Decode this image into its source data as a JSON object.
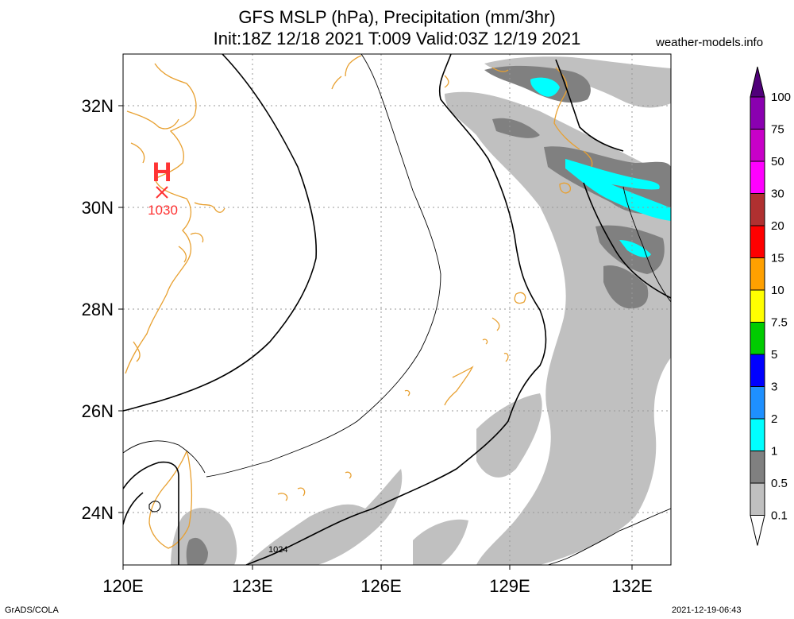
{
  "header": {
    "title_line1": "GFS MSLP (hPa), Precipitation (mm/3hr)",
    "title_line2": "Init:18Z 12/18 2021 T:009 Valid:03Z 12/19 2021",
    "site": "weather-models.info"
  },
  "footer": {
    "left": "GrADS/COLA",
    "right": "2021-12-19-06:43"
  },
  "map": {
    "lat_labels": [
      "32N",
      "30N",
      "28N",
      "26N",
      "24N"
    ],
    "lon_labels": [
      "120E",
      "123E",
      "126E",
      "129E",
      "132E"
    ],
    "high_marker": {
      "symbol": "H",
      "value": "1030",
      "color": "#ff3333"
    },
    "contour_label": "1024",
    "coastline_color": "#e8a030",
    "precip_colors": {
      "light": "#c0c0c0",
      "medium": "#808080",
      "cyan": "#00ffff"
    }
  },
  "legend": {
    "labels": [
      "100",
      "75",
      "50",
      "30",
      "20",
      "15",
      "10",
      "7.5",
      "5",
      "3",
      "2",
      "1",
      "0.5",
      "0.1"
    ],
    "colors": [
      "#8a00b0",
      "#c800c8",
      "#ff00ff",
      "#b03030",
      "#ff0000",
      "#ffa000",
      "#ffff00",
      "#00cc00",
      "#0000ff",
      "#1e90ff",
      "#00ffff",
      "#808080",
      "#c0c0c0",
      "#ffffff"
    ],
    "top_color": "#50007a"
  }
}
